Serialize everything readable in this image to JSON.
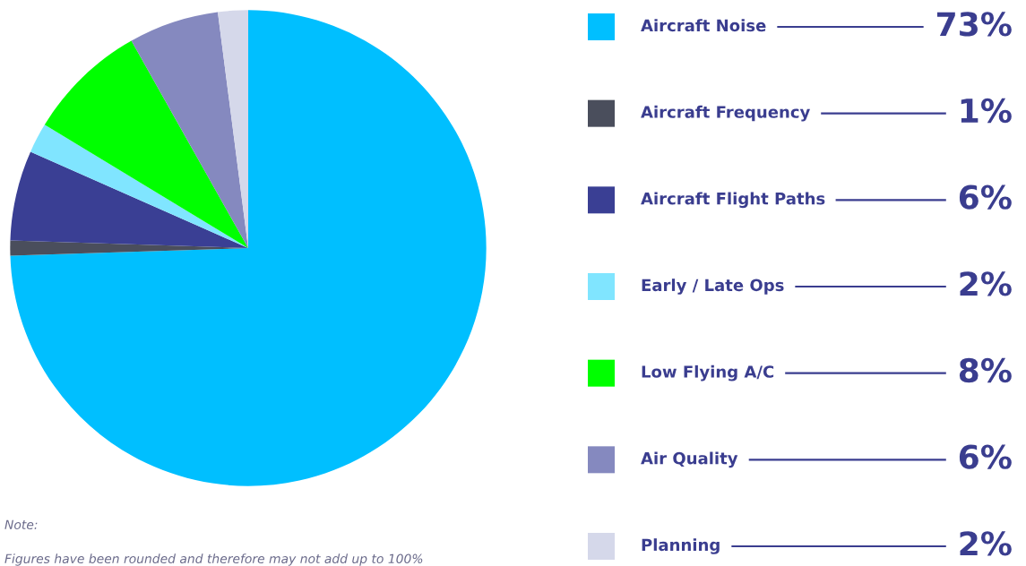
{
  "chart_data": {
    "type": "pie",
    "categories": [
      "Aircraft Noise",
      "Aircraft Frequency",
      "Aircraft Flight Paths",
      "Early / Late Ops",
      "Low Flying A/C",
      "Air Quality",
      "Planning"
    ],
    "values": [
      73,
      1,
      6,
      2,
      8,
      6,
      2
    ],
    "colors": [
      "#00bfff",
      "#4a4e5c",
      "#3a3f94",
      "#80e5ff",
      "#00ff00",
      "#8589bf",
      "#d5d8ea"
    ],
    "value_labels": [
      "73%",
      "1%",
      "6%",
      "2%",
      "8%",
      "6%",
      "2%"
    ],
    "legend": "right",
    "annotations": [
      "Note:",
      "Figures have been rounded and therefore may not add up to 100%"
    ]
  }
}
